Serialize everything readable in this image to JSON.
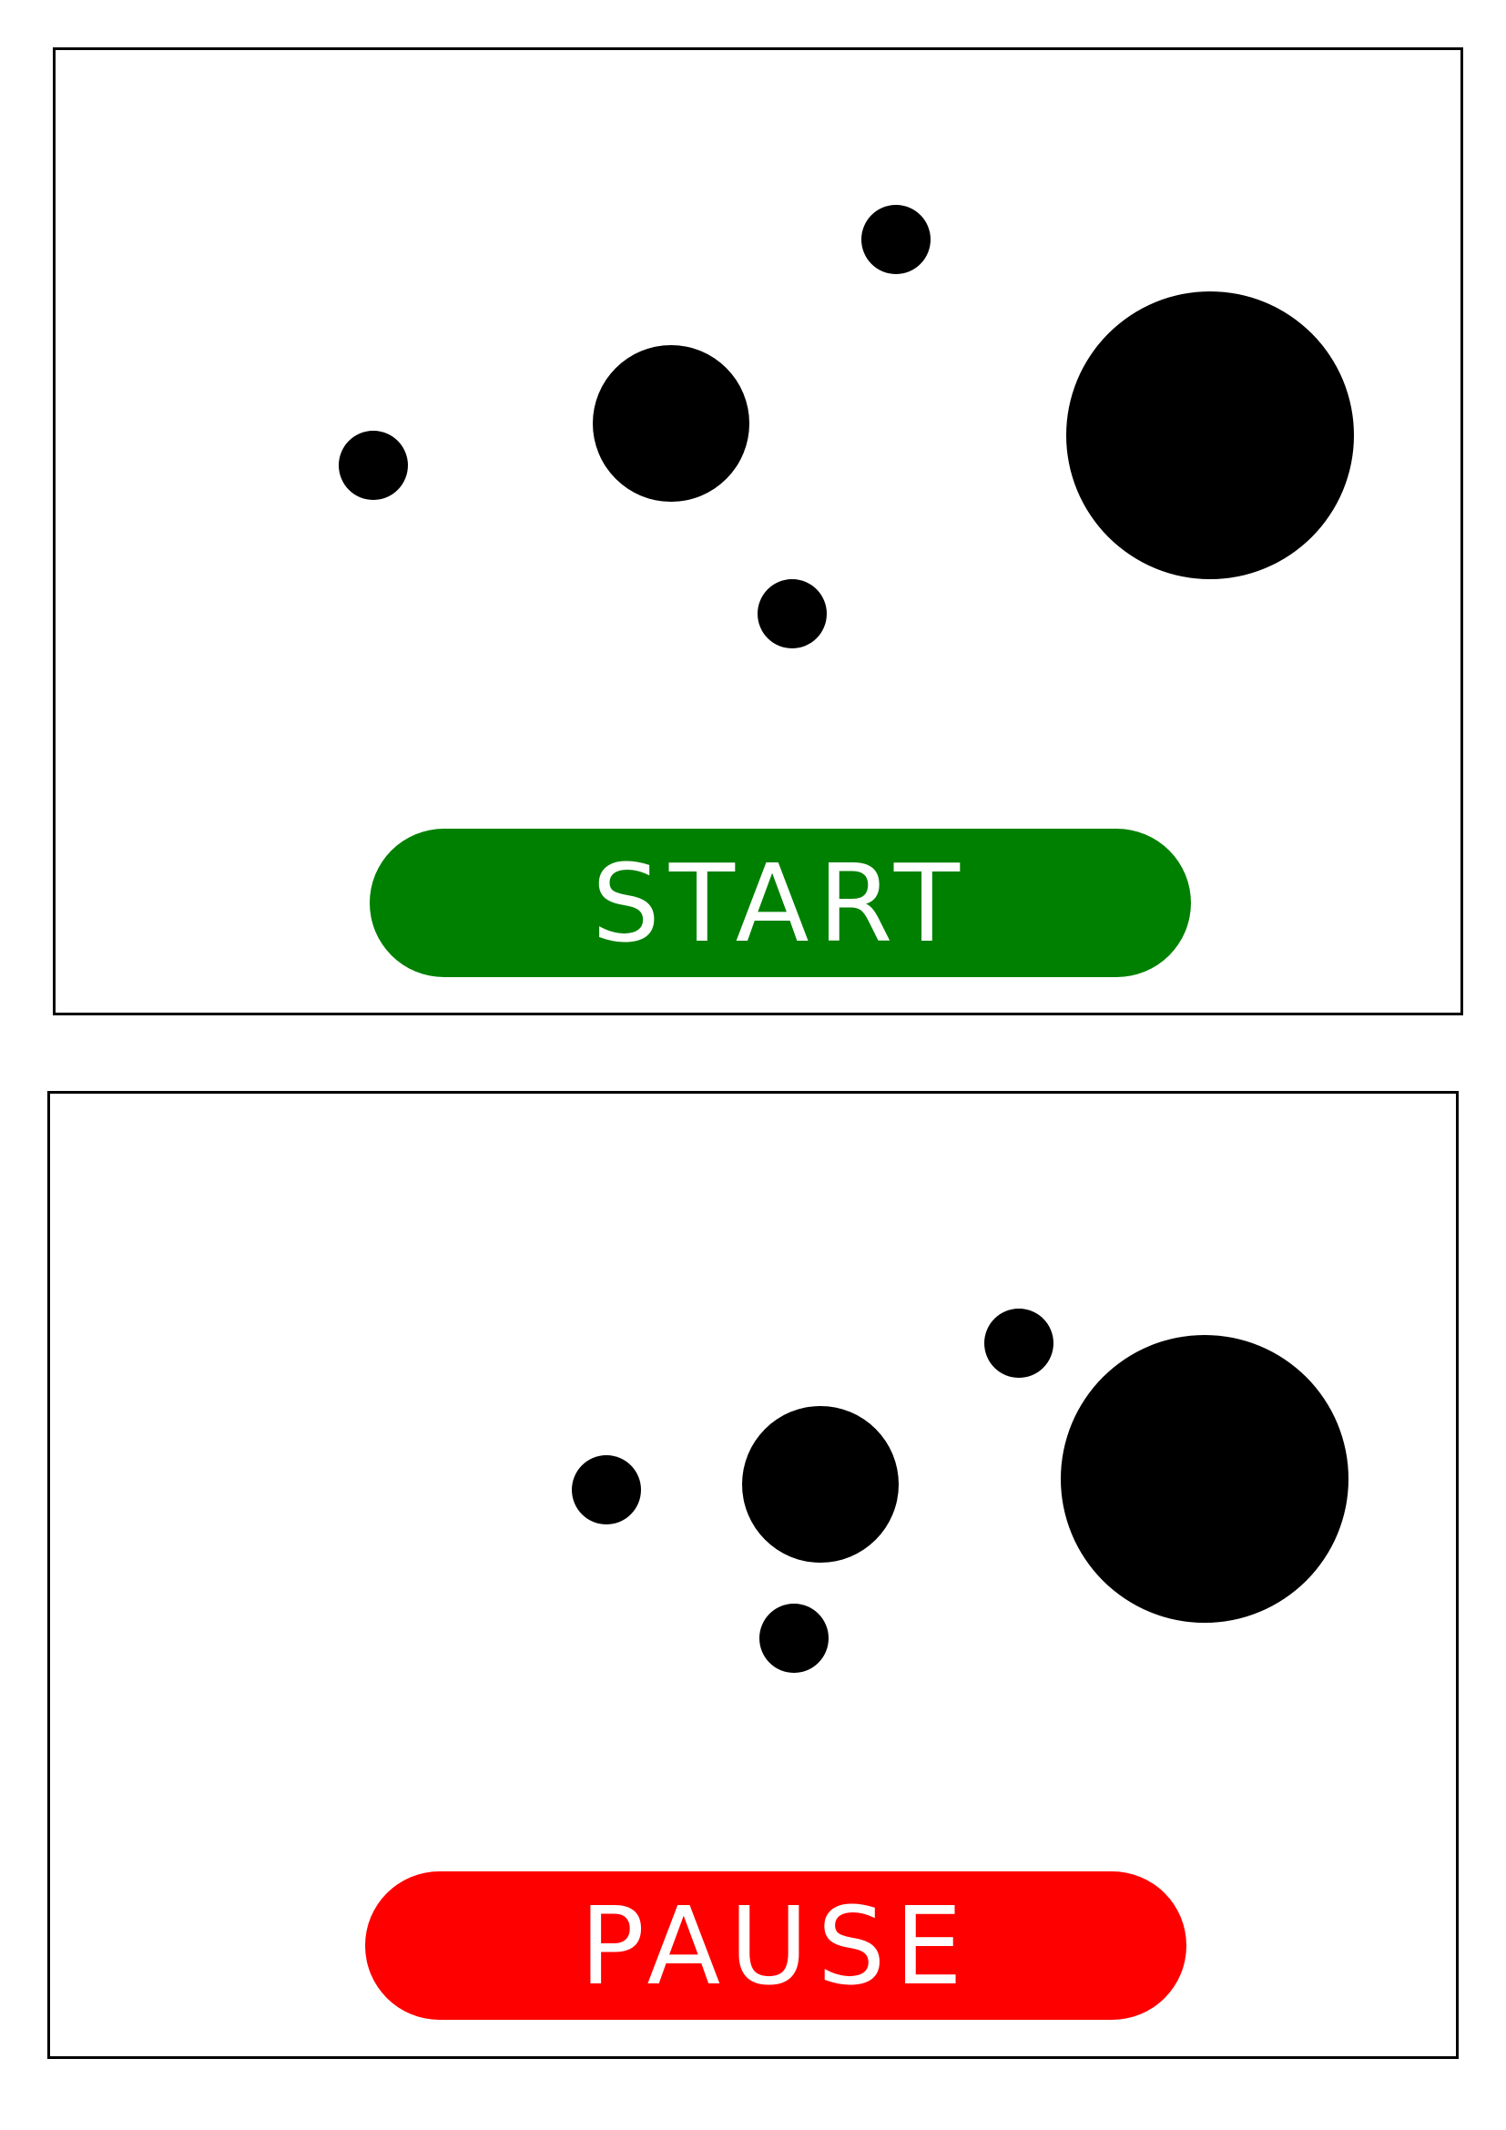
{
  "screens": [
    {
      "id": "start",
      "button": {
        "label": "START",
        "color": "#008000",
        "text_color": "#ffffff"
      },
      "ball_color": "#000000"
    },
    {
      "id": "pause",
      "button": {
        "label": "PAUSE",
        "color": "#ff0000",
        "text_color": "#ffffff"
      },
      "ball_color": "#000000"
    }
  ]
}
